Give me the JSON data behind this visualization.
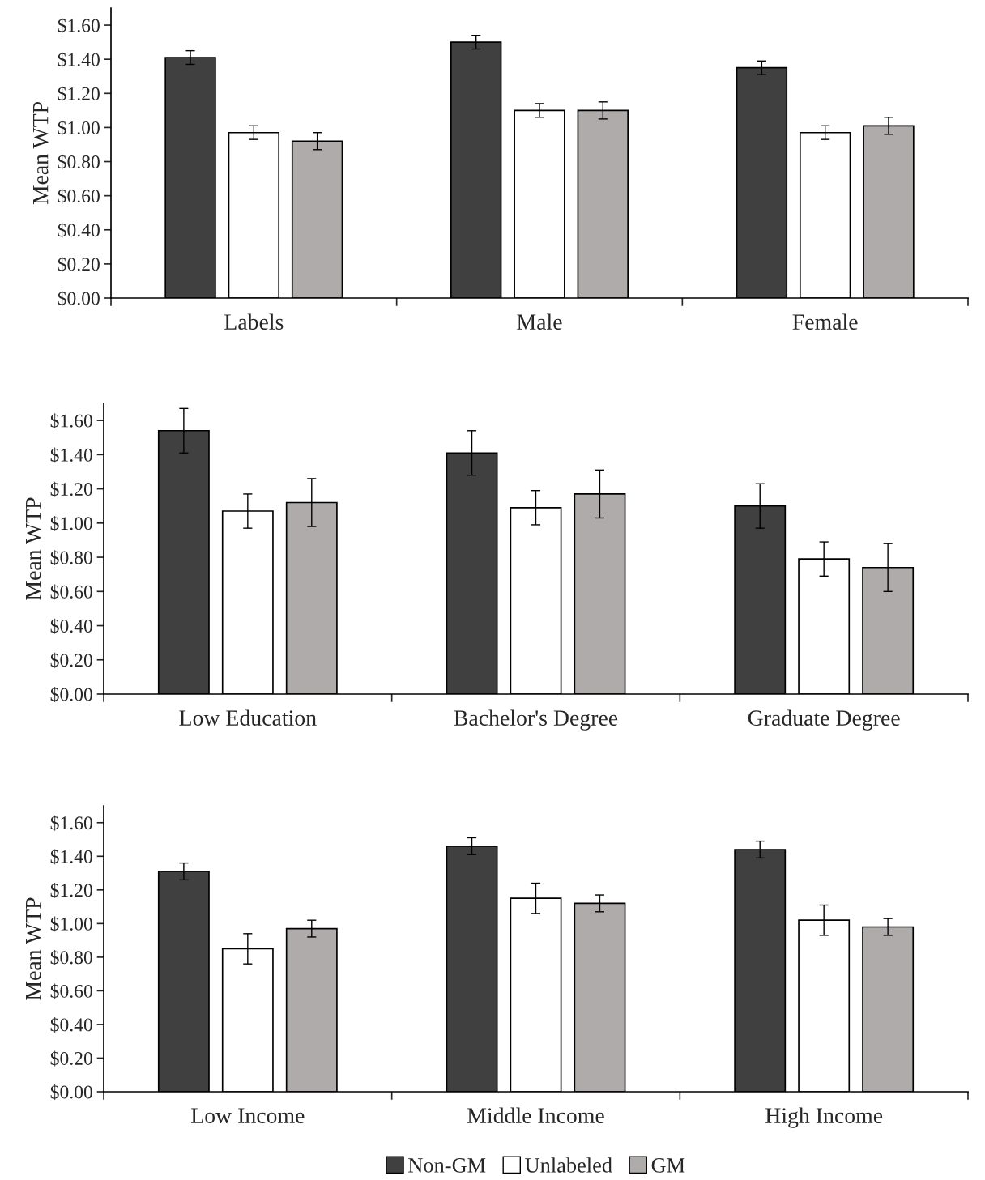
{
  "chart_data": [
    {
      "type": "bar",
      "ylabel": "Mean WTP",
      "categories": [
        "Labels",
        "Male",
        "Female"
      ],
      "ylim": [
        0,
        1.7
      ],
      "yticks": [
        {
          "value": 0,
          "label": "$0.00"
        },
        {
          "value": 0.2,
          "label": "$0.20"
        },
        {
          "value": 0.4,
          "label": "$0.40"
        },
        {
          "value": 0.6,
          "label": "$0.60"
        },
        {
          "value": 0.8,
          "label": "$0.80"
        },
        {
          "value": 1.0,
          "label": "$1.00"
        },
        {
          "value": 1.2,
          "label": "$1.20"
        },
        {
          "value": 1.4,
          "label": "$1.40"
        },
        {
          "value": 1.6,
          "label": "$1.60"
        }
      ],
      "grid": false,
      "legend": false,
      "series": [
        {
          "color": "#404040",
          "values": [
            1.41,
            1.5,
            1.35
          ],
          "errors": [
            0.04,
            0.04,
            0.04
          ]
        },
        {
          "color": "#ffffff",
          "values": [
            0.97,
            1.1,
            0.97
          ],
          "errors": [
            0.04,
            0.04,
            0.04
          ]
        },
        {
          "color": "#afabab",
          "values": [
            0.92,
            1.1,
            1.01
          ],
          "errors": [
            0.05,
            0.05,
            0.05
          ]
        }
      ]
    },
    {
      "type": "bar",
      "ylabel": "Mean WTP",
      "categories": [
        "Low Education",
        "Bachelor's Degree",
        "Graduate Degree"
      ],
      "ylim": [
        0,
        1.7
      ],
      "yticks": [
        {
          "value": 0,
          "label": "$0.00"
        },
        {
          "value": 0.2,
          "label": "$0.20"
        },
        {
          "value": 0.4,
          "label": "$0.40"
        },
        {
          "value": 0.6,
          "label": "$0.60"
        },
        {
          "value": 0.8,
          "label": "$0.80"
        },
        {
          "value": 1.0,
          "label": "$1.00"
        },
        {
          "value": 1.2,
          "label": "$1.20"
        },
        {
          "value": 1.4,
          "label": "$1.40"
        },
        {
          "value": 1.6,
          "label": "$1.60"
        }
      ],
      "grid": false,
      "legend": false,
      "series": [
        {
          "color": "#404040",
          "values": [
            1.54,
            1.41,
            1.1
          ],
          "errors": [
            0.13,
            0.13,
            0.13
          ]
        },
        {
          "color": "#ffffff",
          "values": [
            1.07,
            1.09,
            0.79
          ],
          "errors": [
            0.1,
            0.1,
            0.1
          ]
        },
        {
          "color": "#afabab",
          "values": [
            1.12,
            1.17,
            0.74
          ],
          "errors": [
            0.14,
            0.14,
            0.14
          ]
        }
      ]
    },
    {
      "type": "bar",
      "ylabel": "Mean WTP",
      "categories": [
        "Low Income",
        "Middle Income",
        "High Income"
      ],
      "ylim": [
        0,
        1.7
      ],
      "yticks": [
        {
          "value": 0,
          "label": "$0.00"
        },
        {
          "value": 0.2,
          "label": "$0.20"
        },
        {
          "value": 0.4,
          "label": "$0.40"
        },
        {
          "value": 0.6,
          "label": "$0.60"
        },
        {
          "value": 0.8,
          "label": "$0.80"
        },
        {
          "value": 1.0,
          "label": "$1.00"
        },
        {
          "value": 1.2,
          "label": "$1.20"
        },
        {
          "value": 1.4,
          "label": "$1.40"
        },
        {
          "value": 1.6,
          "label": "$1.60"
        }
      ],
      "grid": false,
      "legend": "bottom",
      "series": [
        {
          "name": "Non-GM",
          "color": "#404040",
          "values": [
            1.31,
            1.46,
            1.44
          ],
          "errors": [
            0.05,
            0.05,
            0.05
          ]
        },
        {
          "name": "Unlabeled",
          "color": "#ffffff",
          "values": [
            0.85,
            1.15,
            1.02
          ],
          "errors": [
            0.09,
            0.09,
            0.09
          ]
        },
        {
          "name": "GM",
          "color": "#afabab",
          "values": [
            0.97,
            1.12,
            0.98
          ],
          "errors": [
            0.05,
            0.05,
            0.05
          ]
        }
      ]
    }
  ]
}
